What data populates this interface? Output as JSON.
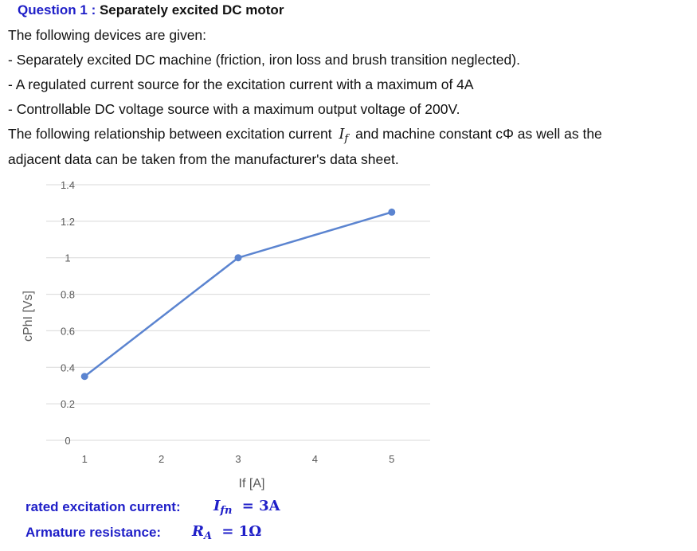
{
  "header": {
    "question_label": "Question 1 :",
    "title": "Separately excited DC motor"
  },
  "text": {
    "intro": "The following devices are given:",
    "items": [
      "- Separately excited DC machine (friction, iron loss and brush transition neglected).",
      "- A regulated current source for the excitation current with a maximum of 4A",
      "- Controllable DC voltage source with a maximum output voltage of 200V."
    ],
    "relation_part1": "The following relationship between excitation current",
    "relation_symbol": "I",
    "relation_symbol_sub": "f",
    "relation_part2": "and machine constant cΦ as well as the",
    "relation_line2": "adjacent data can be taken from the manufacturer's data sheet."
  },
  "chart_data": {
    "type": "line",
    "x": [
      1,
      3,
      5
    ],
    "series": [
      {
        "values": [
          0.35,
          1.0,
          1.25
        ],
        "color": "#5b84d0"
      }
    ],
    "xlabel": "If [A]",
    "ylabel": "cPhI [Vs]",
    "xticks": [
      "1",
      "2",
      "3",
      "4",
      "5"
    ],
    "yticks": [
      "0",
      "0.2",
      "0.4",
      "0.6",
      "0.8",
      "1",
      "1.2",
      "1.4"
    ],
    "xlim": [
      0.5,
      5.5
    ],
    "ylim": [
      0,
      1.4
    ],
    "grid": true
  },
  "footer": {
    "rated_label": "rated excitation current:",
    "rated_symbol": "I",
    "rated_sub": "fn",
    "rated_value": "= 3A",
    "armature_label": "Armature resistance:",
    "armature_symbol": "R",
    "armature_sub": "A",
    "armature_value": "= 1Ω"
  }
}
